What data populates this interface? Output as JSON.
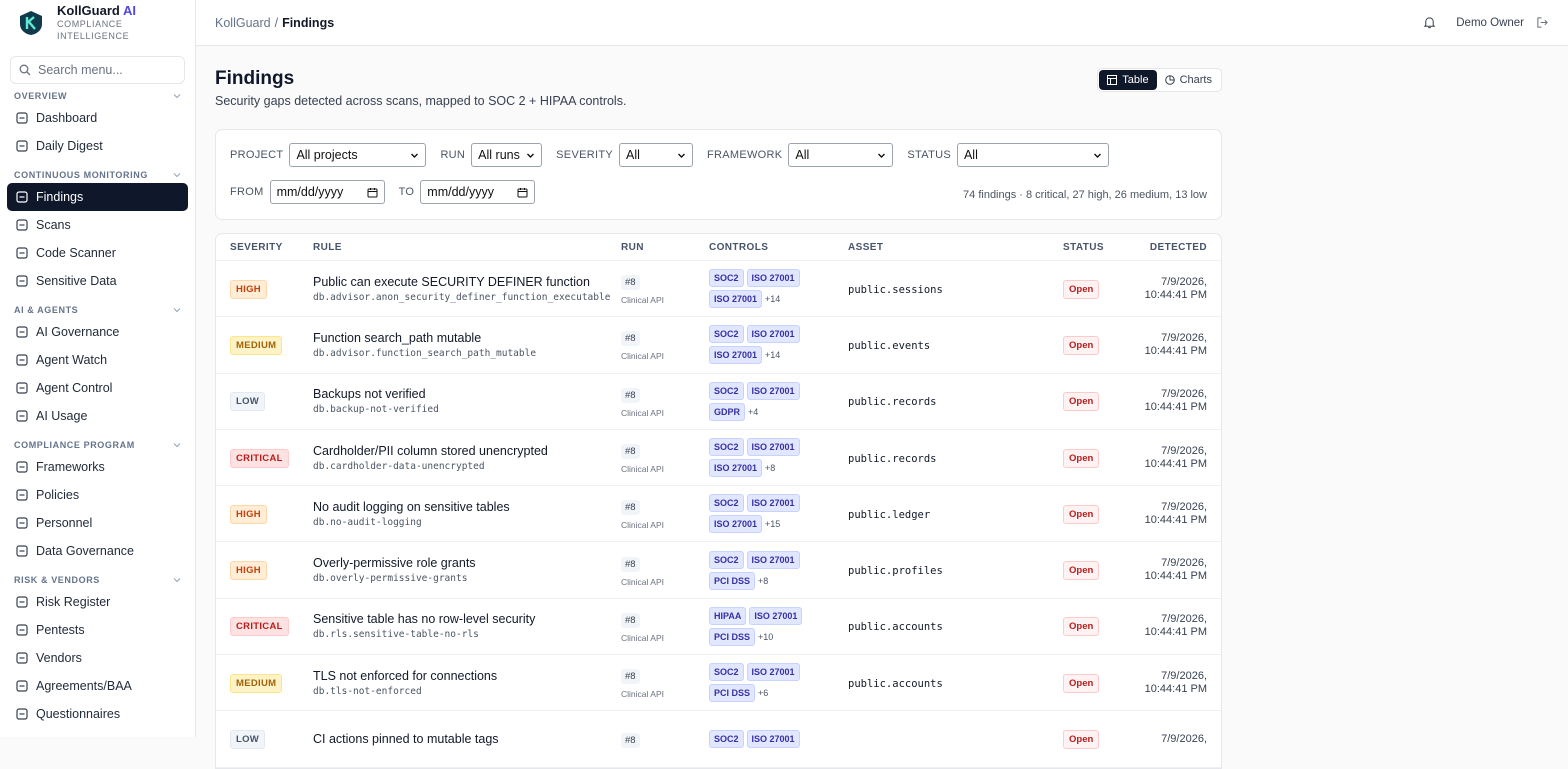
{
  "brand": {
    "name": "KollGuard",
    "accent": "AI",
    "tagline": "COMPLIANCE INTELLIGENCE"
  },
  "search_placeholder": "Search menu...",
  "nav": [
    {
      "title": "OVERVIEW",
      "items": [
        "Dashboard",
        "Daily Digest"
      ]
    },
    {
      "title": "CONTINUOUS MONITORING",
      "items": [
        "Findings",
        "Scans",
        "Code Scanner",
        "Sensitive Data"
      ]
    },
    {
      "title": "AI & AGENTS",
      "items": [
        "AI Governance",
        "Agent Watch",
        "Agent Control",
        "AI Usage"
      ]
    },
    {
      "title": "COMPLIANCE PROGRAM",
      "items": [
        "Frameworks",
        "Policies",
        "Personnel",
        "Data Governance"
      ]
    },
    {
      "title": "RISK & VENDORS",
      "items": [
        "Risk Register",
        "Pentests",
        "Vendors",
        "Agreements/BAA",
        "Questionnaires"
      ]
    }
  ],
  "active_nav": "Findings",
  "topbar": {
    "breadcrumb": [
      "KollGuard",
      "Findings"
    ],
    "separator": "/",
    "user": "Demo Owner"
  },
  "page": {
    "title": "Findings",
    "subtitle": "Security gaps detected across scans, mapped to SOC 2 + HIPAA controls.",
    "views": [
      "Table",
      "Charts"
    ]
  },
  "filters": [
    {
      "label": "PROJECT",
      "value": "All projects"
    },
    {
      "label": "RUN",
      "value": "All runs"
    },
    {
      "label": "SEVERITY",
      "value": "All"
    },
    {
      "label": "FRAMEWORK",
      "value": "All"
    },
    {
      "label": "STATUS",
      "value": "All"
    }
  ],
  "dates": [
    {
      "label": "FROM",
      "value": "mm/dd/yyyy"
    },
    {
      "label": "TO",
      "value": "mm/dd/yyyy"
    }
  ],
  "summary": "74 findings · 8 critical, 27 high, 26 medium, 13 low",
  "table": {
    "columns": [
      "SEVERITY",
      "RULE",
      "RUN",
      "CONTROLS",
      "ASSET",
      "STATUS",
      "DETECTED"
    ],
    "rows": [
      {
        "severity": "HIGH",
        "rule": "Public can execute SECURITY DEFINER function",
        "rule_id": "db.advisor.anon_security_definer_function_executable",
        "run": "#8",
        "project": "Clinical API",
        "controls": [
          "SOC2",
          "ISO 27001",
          "ISO 27001"
        ],
        "more": "+14",
        "asset": "public.sessions",
        "status": "Open",
        "detected": "7/9/2026, 10:44:41 PM"
      },
      {
        "severity": "MEDIUM",
        "rule": "Function search_path mutable",
        "rule_id": "db.advisor.function_search_path_mutable",
        "run": "#8",
        "project": "Clinical API",
        "controls": [
          "SOC2",
          "ISO 27001",
          "ISO 27001"
        ],
        "more": "+14",
        "asset": "public.events",
        "status": "Open",
        "detected": "7/9/2026, 10:44:41 PM"
      },
      {
        "severity": "LOW",
        "rule": "Backups not verified",
        "rule_id": "db.backup-not-verified",
        "run": "#8",
        "project": "Clinical API",
        "controls": [
          "SOC2",
          "ISO 27001",
          "GDPR"
        ],
        "more": "+4",
        "asset": "public.records",
        "status": "Open",
        "detected": "7/9/2026, 10:44:41 PM"
      },
      {
        "severity": "CRITICAL",
        "rule": "Cardholder/PII column stored unencrypted",
        "rule_id": "db.cardholder-data-unencrypted",
        "run": "#8",
        "project": "Clinical API",
        "controls": [
          "SOC2",
          "ISO 27001",
          "ISO 27001"
        ],
        "more": "+8",
        "asset": "public.records",
        "status": "Open",
        "detected": "7/9/2026, 10:44:41 PM"
      },
      {
        "severity": "HIGH",
        "rule": "No audit logging on sensitive tables",
        "rule_id": "db.no-audit-logging",
        "run": "#8",
        "project": "Clinical API",
        "controls": [
          "SOC2",
          "ISO 27001",
          "ISO 27001"
        ],
        "more": "+15",
        "asset": "public.ledger",
        "status": "Open",
        "detected": "7/9/2026, 10:44:41 PM"
      },
      {
        "severity": "HIGH",
        "rule": "Overly-permissive role grants",
        "rule_id": "db.overly-permissive-grants",
        "run": "#8",
        "project": "Clinical API",
        "controls": [
          "SOC2",
          "ISO 27001",
          "PCI DSS"
        ],
        "more": "+8",
        "asset": "public.profiles",
        "status": "Open",
        "detected": "7/9/2026, 10:44:41 PM"
      },
      {
        "severity": "CRITICAL",
        "rule": "Sensitive table has no row-level security",
        "rule_id": "db.rls.sensitive-table-no-rls",
        "run": "#8",
        "project": "Clinical API",
        "controls": [
          "HIPAA",
          "ISO 27001",
          "PCI DSS"
        ],
        "more": "+10",
        "asset": "public.accounts",
        "status": "Open",
        "detected": "7/9/2026, 10:44:41 PM"
      },
      {
        "severity": "MEDIUM",
        "rule": "TLS not enforced for connections",
        "rule_id": "db.tls-not-enforced",
        "run": "#8",
        "project": "Clinical API",
        "controls": [
          "SOC2",
          "ISO 27001",
          "PCI DSS"
        ],
        "more": "+6",
        "asset": "public.accounts",
        "status": "Open",
        "detected": "7/9/2026, 10:44:41 PM"
      },
      {
        "severity": "LOW",
        "rule": "CI actions pinned to mutable tags",
        "run": "#8",
        "controls": [
          "SOC2",
          "ISO 27001"
        ],
        "status": "Open",
        "detected": "7/9/2026,"
      }
    ]
  }
}
